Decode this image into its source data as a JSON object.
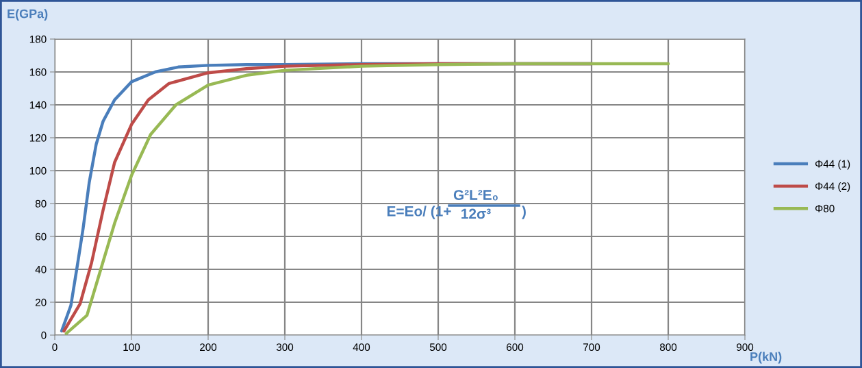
{
  "chart_data": {
    "type": "line",
    "xlabel": "P(kN)",
    "ylabel": "E(GPa)",
    "xlim": [
      0,
      900
    ],
    "xticks": [
      0,
      100,
      200,
      300,
      400,
      500,
      600,
      700,
      800,
      900
    ],
    "ylim": [
      0,
      180
    ],
    "yticks": [
      0,
      20,
      40,
      60,
      80,
      100,
      120,
      140,
      160,
      180
    ],
    "grid": true,
    "legend": "right",
    "marker": "none",
    "line_style": "solid",
    "annotations": [
      "E=Eo/ (1+",
      "G²L²E₀",
      "12σ³",
      ")"
    ],
    "series": [
      {
        "name": "Φ44 (1)",
        "color": "#4a7ebb",
        "x": [
          9,
          21,
          30,
          37,
          45,
          54,
          63,
          78,
          100,
          131,
          161,
          200,
          250,
          300,
          400,
          500,
          700
        ],
        "values": [
          2.5,
          18,
          44,
          65,
          93,
          116,
          130,
          143,
          154,
          160,
          163,
          164,
          164.5,
          164.5,
          165,
          165,
          165
        ]
      },
      {
        "name": "Φ44 (2)",
        "color": "#be4b48",
        "x": [
          12,
          33,
          48,
          63,
          78,
          100,
          122,
          149,
          200,
          250,
          300,
          400,
          500,
          700
        ],
        "values": [
          2.5,
          19,
          44,
          76,
          105,
          128,
          143,
          153,
          159.5,
          162,
          163.5,
          164.5,
          165,
          165
        ]
      },
      {
        "name": "Φ80",
        "color": "#98b954",
        "x": [
          15,
          42,
          60,
          78,
          100,
          125,
          158,
          200,
          250,
          300,
          400,
          500,
          600,
          800
        ],
        "values": [
          1,
          12,
          40,
          68,
          97,
          122,
          140,
          152,
          158,
          161,
          163.5,
          164.5,
          165,
          165
        ]
      }
    ]
  }
}
